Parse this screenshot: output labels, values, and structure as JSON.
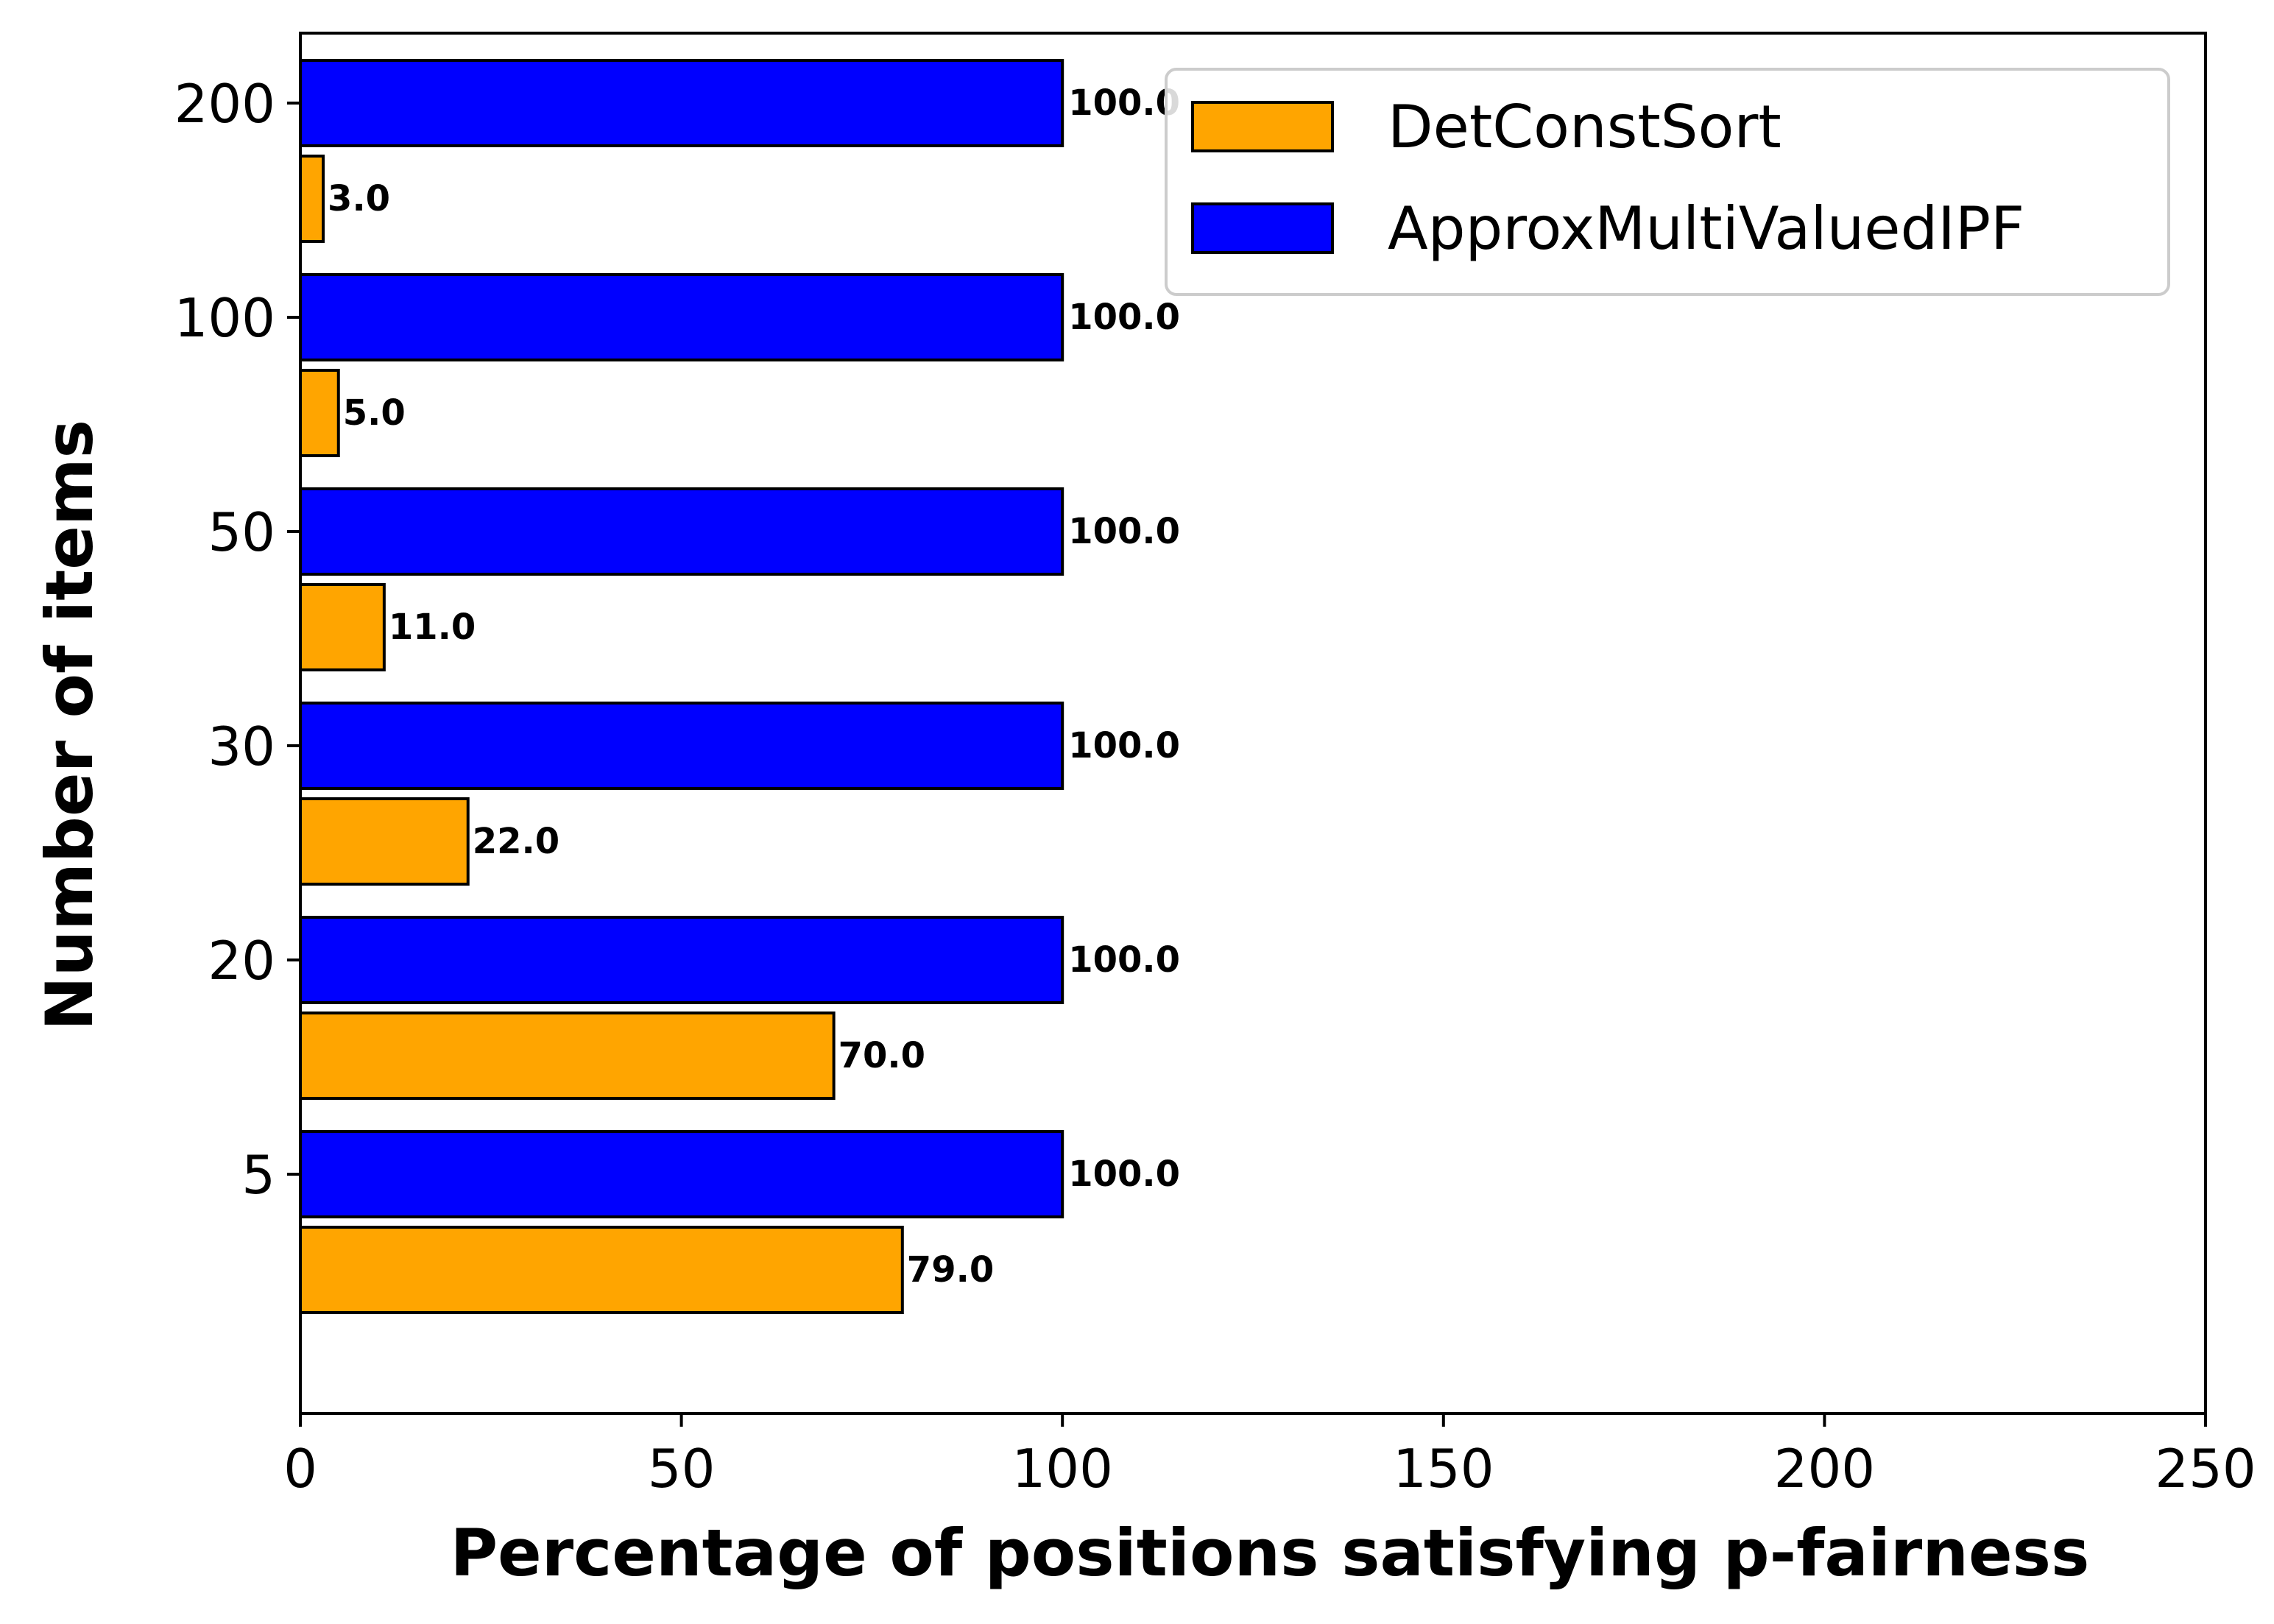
{
  "chart_data": {
    "type": "bar",
    "orientation": "horizontal",
    "categories": [
      "5",
      "20",
      "30",
      "50",
      "100",
      "200"
    ],
    "series": [
      {
        "name": "DetConstSort",
        "color": "#FFA500",
        "values": [
          79.0,
          70.0,
          22.0,
          11.0,
          5.0,
          3.0
        ],
        "labels": [
          "79.0",
          "70.0",
          "22.0",
          "11.0",
          "5.0",
          "3.0"
        ]
      },
      {
        "name": "ApproxMultiValuedIPF",
        "color": "#0000FF",
        "values": [
          100.0,
          100.0,
          100.0,
          100.0,
          100.0,
          100.0
        ],
        "labels": [
          "100.0",
          "100.0",
          "100.0",
          "100.0",
          "100.0",
          "100.0"
        ]
      }
    ],
    "xlabel": "Percentage of positions satisfying p-fairness",
    "ylabel": "Number of items",
    "xlim": [
      0,
      250
    ],
    "xticks": [
      0,
      50,
      100,
      150,
      200,
      250
    ],
    "xtick_labels": [
      "0",
      "50",
      "100",
      "150",
      "200",
      "250"
    ],
    "legend_position": "top-right",
    "grid": false
  }
}
